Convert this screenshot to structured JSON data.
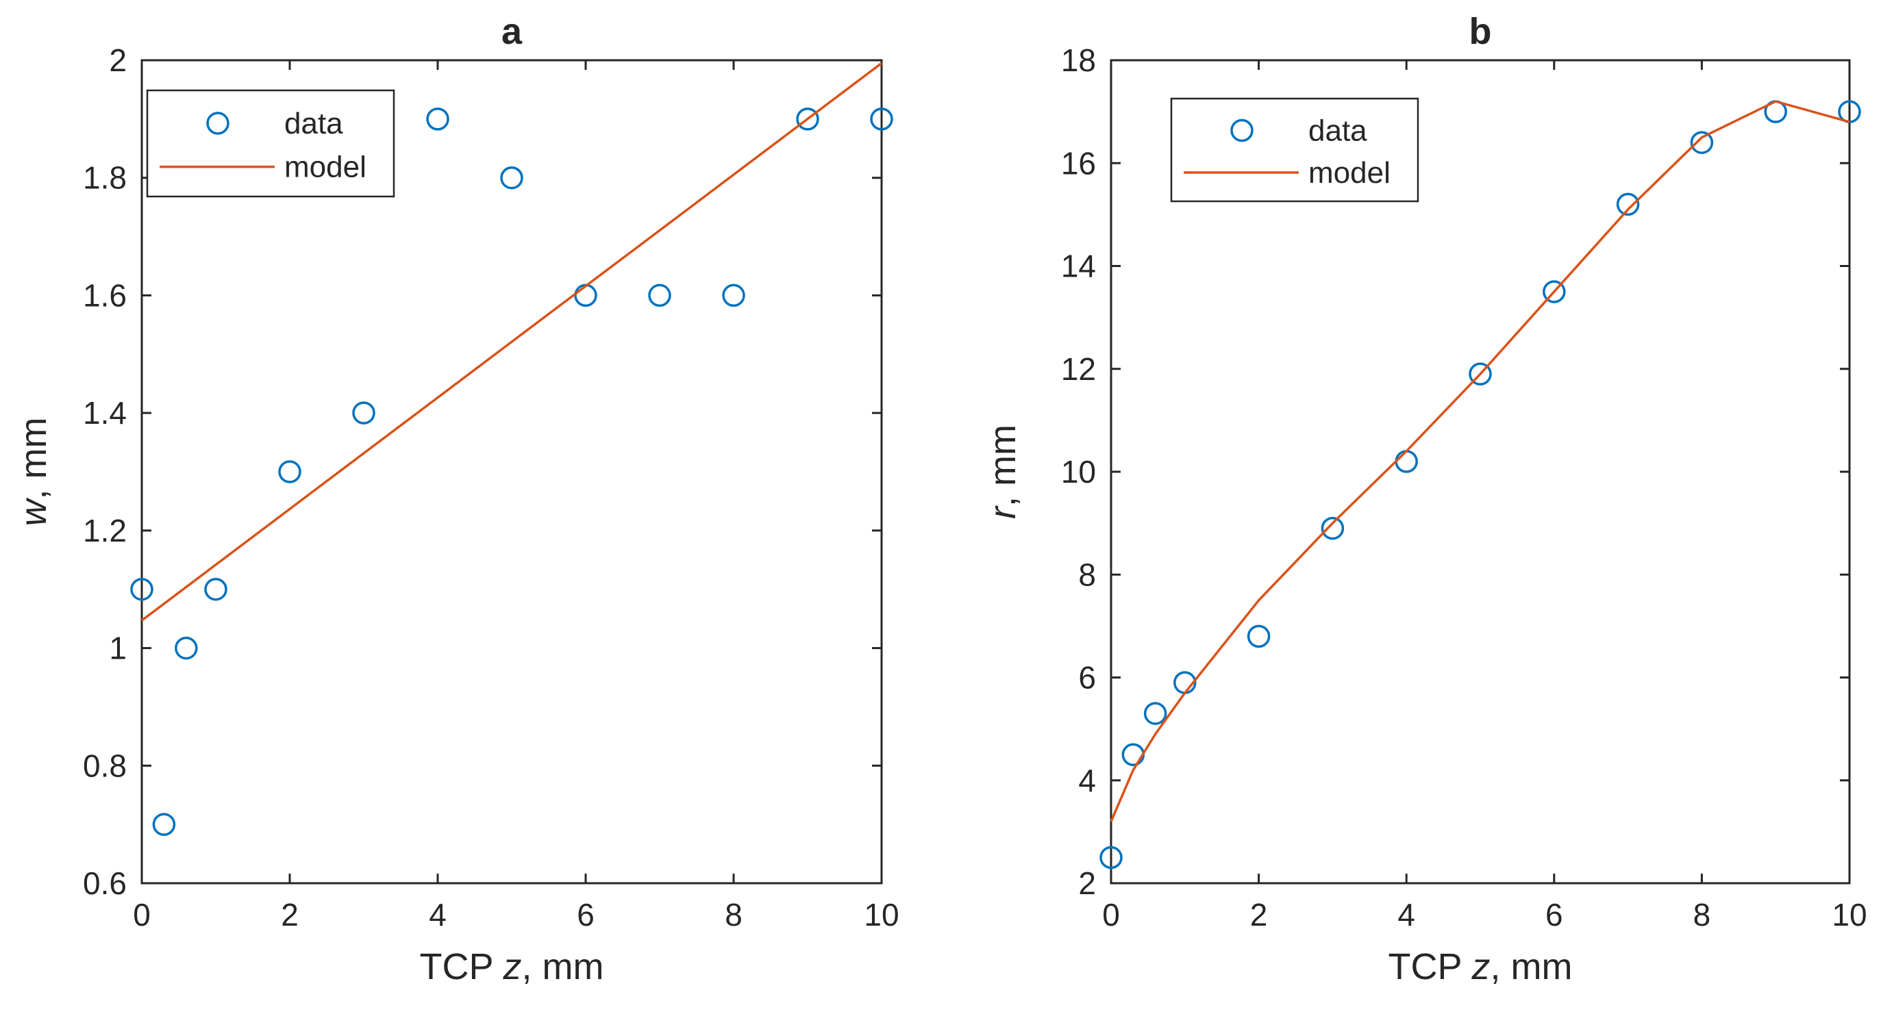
{
  "colors": {
    "data": "#0072BD",
    "model": "#D95319",
    "axis": "#262626"
  },
  "chart_data": [
    {
      "type": "scatter",
      "title": "a",
      "xlabel_prefix": "TCP",
      "xlabel_var": "z",
      "xlabel_suffix": ", mm",
      "ylabel_var": "w",
      "ylabel_suffix": ", mm",
      "xlim": [
        0,
        10
      ],
      "ylim": [
        0.6,
        2.0
      ],
      "xticks": [
        0,
        2,
        4,
        6,
        8,
        10
      ],
      "xtick_labels": [
        "0",
        "2",
        "4",
        "6",
        "8",
        "10"
      ],
      "yticks": [
        0.6,
        0.8,
        1.0,
        1.2,
        1.4,
        1.6,
        1.8,
        2.0
      ],
      "ytick_labels": [
        "0.6",
        "0.8",
        "1",
        "1.2",
        "1.4",
        "1.6",
        "1.8",
        "2"
      ],
      "legend_position": "top-left",
      "legend": [
        "data",
        "model"
      ],
      "series": [
        {
          "name": "data",
          "style": "markers",
          "x": [
            0,
            0.3,
            0.6,
            1,
            2,
            3,
            4,
            5,
            6,
            7,
            8,
            9,
            10
          ],
          "y": [
            1.1,
            0.7,
            1.0,
            1.1,
            1.3,
            1.4,
            1.9,
            1.8,
            1.6,
            1.6,
            1.6,
            1.9,
            1.9
          ]
        },
        {
          "name": "model",
          "style": "line",
          "x": [
            0,
            10
          ],
          "y": [
            1.047,
            1.995
          ]
        }
      ]
    },
    {
      "type": "scatter",
      "title": "b",
      "xlabel_prefix": "TCP",
      "xlabel_var": "z",
      "xlabel_suffix": ", mm",
      "ylabel_var": "r",
      "ylabel_suffix": ", mm",
      "xlim": [
        0,
        10
      ],
      "ylim": [
        2,
        18
      ],
      "xticks": [
        0,
        2,
        4,
        6,
        8,
        10
      ],
      "xtick_labels": [
        "0",
        "2",
        "4",
        "6",
        "8",
        "10"
      ],
      "yticks": [
        2,
        4,
        6,
        8,
        10,
        12,
        14,
        16,
        18
      ],
      "ytick_labels": [
        "2",
        "4",
        "6",
        "8",
        "10",
        "12",
        "14",
        "16",
        "18"
      ],
      "legend_position": "top-left",
      "legend": [
        "data",
        "model"
      ],
      "series": [
        {
          "name": "data",
          "style": "markers",
          "x": [
            0,
            0.3,
            0.6,
            1,
            2,
            3,
            4,
            5,
            6,
            7,
            8,
            9,
            10
          ],
          "y": [
            2.5,
            4.5,
            5.3,
            5.9,
            6.8,
            8.9,
            10.2,
            11.9,
            13.5,
            15.2,
            16.4,
            17.0,
            17.0
          ]
        },
        {
          "name": "model",
          "style": "line",
          "x": [
            0,
            0.3,
            0.6,
            1,
            2,
            3,
            4,
            5,
            6,
            7,
            8,
            9,
            10
          ],
          "y": [
            3.2,
            4.2,
            4.9,
            5.7,
            7.5,
            9.0,
            10.4,
            11.9,
            13.5,
            15.1,
            16.5,
            17.2,
            16.8
          ]
        }
      ]
    }
  ]
}
